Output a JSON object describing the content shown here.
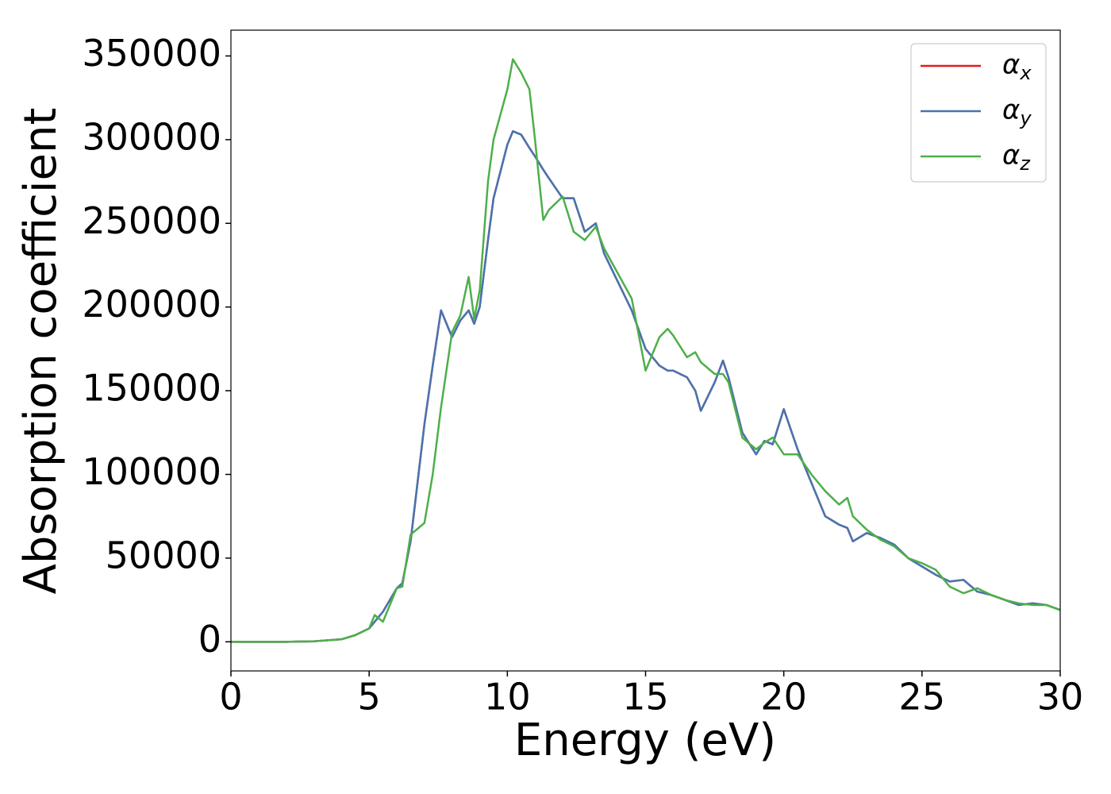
{
  "chart_data": {
    "type": "line",
    "xlabel": "Energy (eV)",
    "ylabel": "Absorption coefficient",
    "x": [
      0,
      2,
      3,
      4,
      4.5,
      5,
      5.2,
      5.5,
      6,
      6.2,
      6.5,
      7,
      7.3,
      7.6,
      8,
      8.3,
      8.6,
      8.8,
      9,
      9.3,
      9.5,
      10,
      10.2,
      10.5,
      10.8,
      11,
      11.3,
      11.5,
      12,
      12.4,
      12.8,
      13.2,
      13.5,
      14,
      14.5,
      15,
      15.5,
      15.8,
      16,
      16.5,
      16.8,
      17,
      17.5,
      17.8,
      18,
      18.5,
      19,
      19.3,
      19.6,
      20,
      20.5,
      21,
      21.5,
      22,
      22.3,
      22.5,
      23,
      23.5,
      24,
      24.5,
      25,
      25.5,
      26,
      26.5,
      27,
      27.5,
      28,
      28.5,
      29,
      29.5,
      30
    ],
    "series": [
      {
        "name": "αx",
        "color": "#e41a1c",
        "values": [
          0,
          0,
          300,
          1500,
          4000,
          8000,
          12000,
          18000,
          32000,
          35000,
          60000,
          130000,
          165000,
          198000,
          182000,
          192000,
          198000,
          190000,
          200000,
          240000,
          265000,
          297000,
          305000,
          303000,
          295000,
          290000,
          282000,
          277000,
          265000,
          265000,
          245000,
          250000,
          232000,
          215000,
          198000,
          175000,
          165000,
          162000,
          162000,
          158000,
          150000,
          138000,
          155000,
          168000,
          158000,
          125000,
          112000,
          120000,
          118000,
          139000,
          115000,
          95000,
          75000,
          70000,
          68000,
          60000,
          65000,
          62000,
          58000,
          50000,
          45000,
          40000,
          36000,
          37000,
          30000,
          28000,
          25000,
          22000,
          23000,
          22000,
          19000
        ]
      },
      {
        "name": "αy",
        "color": "#4575b0",
        "values": [
          0,
          0,
          300,
          1500,
          4000,
          8000,
          12000,
          18000,
          32000,
          35000,
          60000,
          130000,
          165000,
          198000,
          182000,
          192000,
          198000,
          190000,
          200000,
          240000,
          265000,
          297000,
          305000,
          303000,
          295000,
          290000,
          282000,
          277000,
          265000,
          265000,
          245000,
          250000,
          232000,
          215000,
          198000,
          175000,
          165000,
          162000,
          162000,
          158000,
          150000,
          138000,
          155000,
          168000,
          158000,
          125000,
          112000,
          120000,
          118000,
          139000,
          115000,
          95000,
          75000,
          70000,
          68000,
          60000,
          65000,
          62000,
          58000,
          50000,
          45000,
          40000,
          36000,
          37000,
          30000,
          28000,
          25000,
          22000,
          23000,
          22000,
          19000
        ]
      },
      {
        "name": "αz",
        "color": "#4daf4a",
        "values": [
          0,
          0,
          300,
          1500,
          4000,
          8000,
          16000,
          12000,
          32000,
          33000,
          64000,
          71000,
          100000,
          140000,
          185000,
          195000,
          218000,
          193000,
          210000,
          275000,
          300000,
          330000,
          348000,
          340000,
          330000,
          300000,
          252000,
          258000,
          266000,
          245000,
          240000,
          248000,
          235000,
          220000,
          205000,
          162000,
          182000,
          187000,
          183000,
          170000,
          173000,
          167000,
          160000,
          160000,
          155000,
          122000,
          115000,
          119000,
          122000,
          112000,
          112000,
          100000,
          90000,
          82000,
          86000,
          75000,
          67000,
          61000,
          57000,
          50000,
          47000,
          43000,
          33000,
          29000,
          32000,
          28000,
          25000,
          23000,
          22000,
          22000,
          19000
        ]
      }
    ],
    "xlim": [
      0,
      30
    ],
    "xticks": [
      0,
      5,
      10,
      15,
      20,
      25,
      30
    ],
    "ylim": [
      -17400,
      365400
    ],
    "yticks": [
      0,
      50000,
      100000,
      150000,
      200000,
      250000,
      300000,
      350000
    ],
    "legend": "upper right"
  }
}
